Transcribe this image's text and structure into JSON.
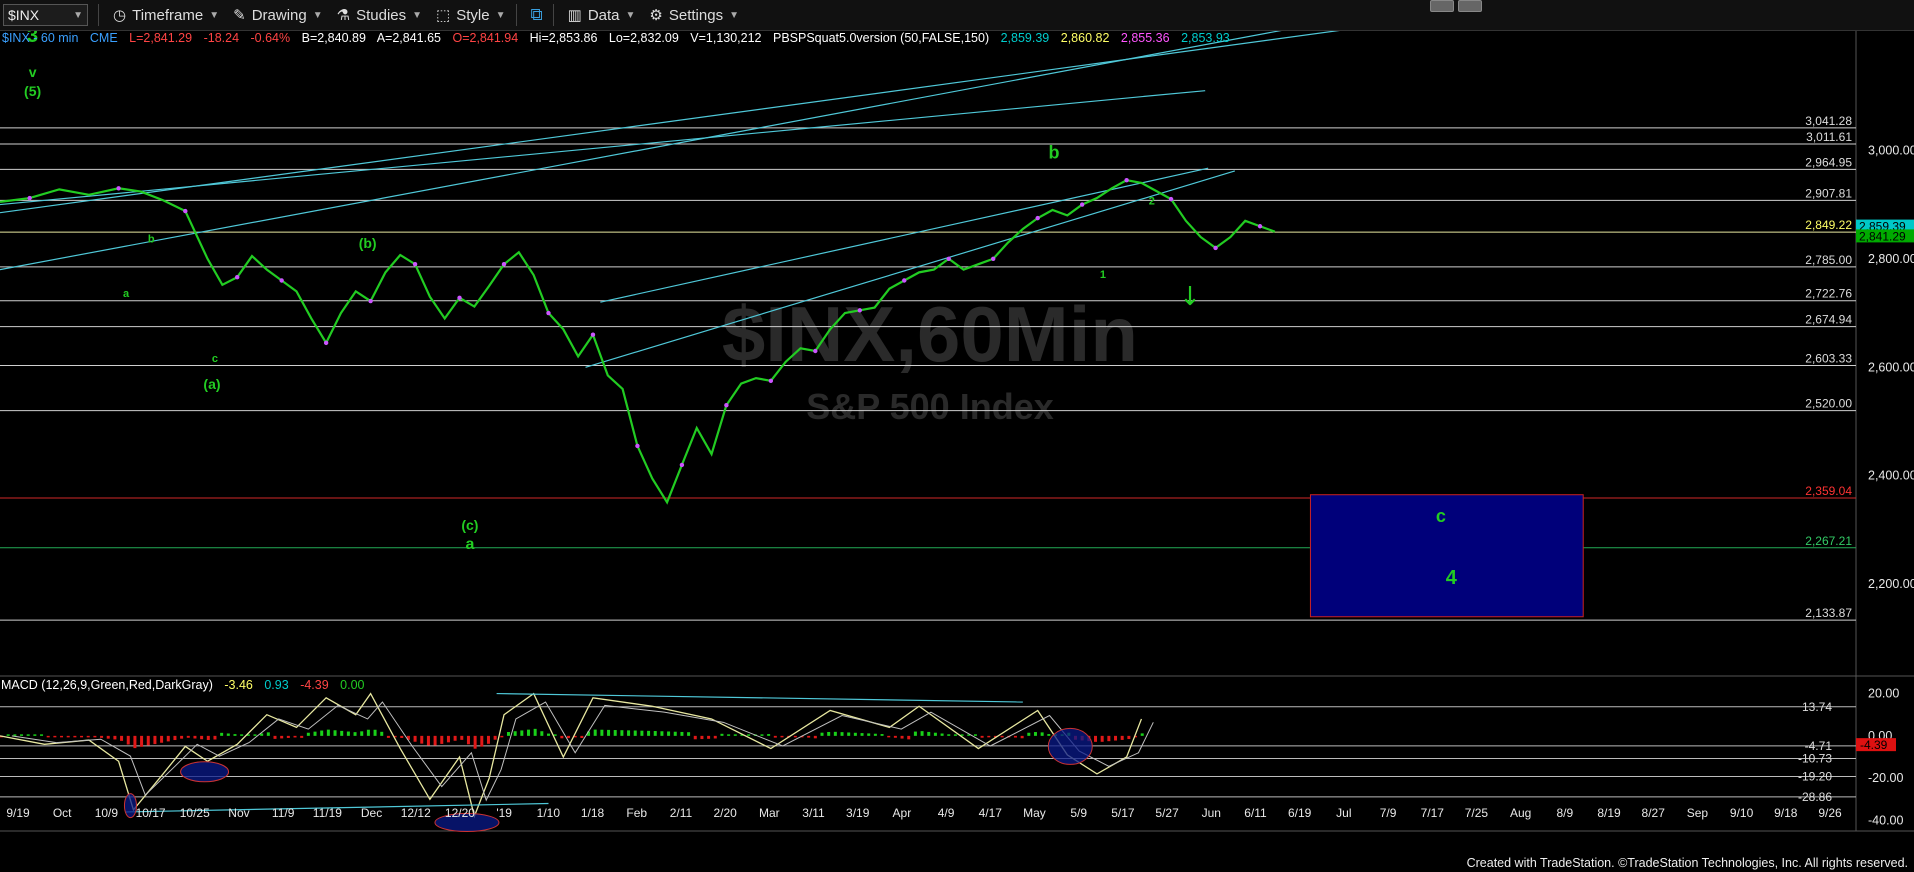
{
  "toolbar": {
    "symbol": "$INX",
    "timeframe": "Timeframe",
    "drawing": "Drawing",
    "studies": "Studies",
    "style": "Style",
    "data": "Data",
    "settings": "Settings"
  },
  "info": {
    "symbol": "$INX - 60 min",
    "exchange": "CME",
    "last": "L=2,841.29",
    "change": "-18.24",
    "pct": "-0.64%",
    "bid": "B=2,840.89",
    "ask": "A=2,841.65",
    "open": "O=2,841.94",
    "high": "Hi=2,853.86",
    "low": "Lo=2,832.09",
    "volume": "V=1,130,212",
    "study": "PBSPSquat5.0version (50,FALSE,150)",
    "v1": "2,859.39",
    "v2": "2,860.82",
    "v3": "2,855.36",
    "v4": "2,853.93"
  },
  "macd": {
    "label": "MACD (12,26,9,Green,Red,DarkGray)",
    "v1": "-3.46",
    "v2": "0.93",
    "v3": "-4.39",
    "v4": "0.00"
  },
  "footer": "Created with TradeStation. ©TradeStation Technologies, Inc. All rights reserved.",
  "colors": {
    "price": "#22cc22",
    "dots": "#cc55ff",
    "trend": "#4fc8d8",
    "level": "#cfcfcf",
    "red_level": "#d02828",
    "green_level": "#22aa55",
    "box": "#00007a",
    "macd_line": "#e8e8a0",
    "signal": "#c0c0c0",
    "hist_up": "#19d019",
    "hist_down": "#e01818"
  },
  "chart_data": {
    "type": "line",
    "title": "$INX,60Min",
    "subtitle": "S&P 500 Index",
    "watermark": "$INX,60Min",
    "watermark_sub": "S&P 500 Index",
    "ylim": [
      2040,
      3220
    ],
    "y_ticks": [
      {
        "v": 3000,
        "t": "3,000.00"
      },
      {
        "v": 2800,
        "t": "2,800.00"
      },
      {
        "v": 2600,
        "t": "2,600.00"
      },
      {
        "v": 2400,
        "t": "2,400.00"
      },
      {
        "v": 2200,
        "t": "2,200.00"
      }
    ],
    "levels": [
      {
        "v": 3041.28,
        "t": "3,041.28",
        "c": "level"
      },
      {
        "v": 3011.61,
        "t": "3,011.61",
        "c": "level"
      },
      {
        "v": 2964.95,
        "t": "2,964.95",
        "c": "level"
      },
      {
        "v": 2907.81,
        "t": "2,907.81",
        "c": "level"
      },
      {
        "v": 2849.22,
        "t": "2,849.22",
        "c": "yellow"
      },
      {
        "v": 2785.0,
        "t": "2,785.00",
        "c": "level"
      },
      {
        "v": 2722.76,
        "t": "2,722.76",
        "c": "level"
      },
      {
        "v": 2674.94,
        "t": "2,674.94",
        "c": "level"
      },
      {
        "v": 2603.33,
        "t": "2,603.33",
        "c": "level"
      },
      {
        "v": 2520.0,
        "t": "2,520.00",
        "c": "level"
      },
      {
        "v": 2359.04,
        "t": "2,359.04",
        "c": "red"
      },
      {
        "v": 2267.21,
        "t": "2,267.21",
        "c": "green"
      },
      {
        "v": 2133.87,
        "t": "2,133.87",
        "c": "level"
      }
    ],
    "last_tags": [
      {
        "v": 2859.39,
        "t": "2,859.39",
        "bg": "#00c8c8"
      },
      {
        "v": 2841.29,
        "t": "2,841.29",
        "bg": "#00aa00"
      }
    ],
    "x_labels": [
      "9/19",
      "Oct",
      "10/9",
      "10/17",
      "10/25",
      "Nov",
      "11/9",
      "11/19",
      "Dec",
      "12/12",
      "12/20",
      "'19",
      "1/10",
      "1/18",
      "Feb",
      "2/11",
      "2/20",
      "Mar",
      "3/11",
      "3/19",
      "Apr",
      "4/9",
      "4/17",
      "May",
      "5/9",
      "5/17",
      "5/27",
      "Jun",
      "6/11",
      "6/19",
      "Jul",
      "7/9",
      "7/17",
      "7/25",
      "Aug",
      "8/9",
      "8/19",
      "8/27",
      "Sep",
      "9/10",
      "9/18",
      "9/26"
    ],
    "price_path": [
      [
        0,
        2905
      ],
      [
        2,
        2912
      ],
      [
        4,
        2928
      ],
      [
        6,
        2918
      ],
      [
        8,
        2930
      ],
      [
        9.5,
        2924
      ],
      [
        11,
        2908
      ],
      [
        12.5,
        2888
      ],
      [
        14,
        2800
      ],
      [
        15,
        2752
      ],
      [
        16,
        2766
      ],
      [
        17,
        2805
      ],
      [
        18,
        2780
      ],
      [
        19,
        2760
      ],
      [
        20,
        2740
      ],
      [
        21,
        2690
      ],
      [
        22,
        2645
      ],
      [
        23,
        2700
      ],
      [
        24,
        2740
      ],
      [
        25,
        2722
      ],
      [
        26,
        2775
      ],
      [
        27,
        2807
      ],
      [
        28,
        2790
      ],
      [
        29,
        2730
      ],
      [
        30,
        2690
      ],
      [
        31,
        2728
      ],
      [
        32,
        2712
      ],
      [
        33,
        2750
      ],
      [
        34,
        2790
      ],
      [
        35,
        2812
      ],
      [
        36,
        2770
      ],
      [
        37,
        2700
      ],
      [
        38,
        2670
      ],
      [
        39,
        2620
      ],
      [
        40,
        2660
      ],
      [
        41,
        2585
      ],
      [
        42,
        2560
      ],
      [
        43,
        2455
      ],
      [
        44,
        2395
      ],
      [
        45,
        2351
      ],
      [
        46,
        2420
      ],
      [
        47,
        2488
      ],
      [
        48,
        2440
      ],
      [
        49,
        2530
      ],
      [
        50,
        2570
      ],
      [
        51,
        2580
      ],
      [
        52,
        2575
      ],
      [
        53,
        2610
      ],
      [
        54,
        2635
      ],
      [
        55,
        2630
      ],
      [
        56,
        2670
      ],
      [
        57,
        2700
      ],
      [
        58,
        2705
      ],
      [
        59,
        2710
      ],
      [
        60,
        2745
      ],
      [
        61,
        2760
      ],
      [
        62,
        2775
      ],
      [
        63,
        2780
      ],
      [
        64,
        2800
      ],
      [
        65,
        2780
      ],
      [
        66,
        2790
      ],
      [
        67,
        2800
      ],
      [
        68,
        2830
      ],
      [
        69,
        2855
      ],
      [
        70,
        2875
      ],
      [
        71,
        2890
      ],
      [
        72,
        2880
      ],
      [
        73,
        2900
      ],
      [
        74,
        2912
      ],
      [
        75,
        2930
      ],
      [
        76,
        2945
      ],
      [
        77,
        2940
      ],
      [
        78,
        2925
      ],
      [
        79,
        2910
      ],
      [
        80,
        2870
      ],
      [
        81,
        2840
      ],
      [
        82,
        2820
      ],
      [
        83,
        2840
      ],
      [
        84,
        2870
      ],
      [
        85,
        2860
      ],
      [
        86,
        2850
      ]
    ],
    "x_span": [
      0,
      125
    ],
    "plot_x_end_label": "5/17",
    "wave_labels": [
      {
        "t": "3",
        "x": 2.2,
        "y": 3200,
        "size": 20
      },
      {
        "t": "v",
        "x": 2.2,
        "y": 3135,
        "size": 14
      },
      {
        "t": "(5)",
        "x": 2.2,
        "y": 3100,
        "size": 14
      },
      {
        "t": "b",
        "x": 10.2,
        "y": 2830,
        "size": 11
      },
      {
        "t": "a",
        "x": 8.5,
        "y": 2730,
        "size": 11
      },
      {
        "t": "c",
        "x": 14.5,
        "y": 2610,
        "size": 11
      },
      {
        "t": "(a)",
        "x": 14.3,
        "y": 2560,
        "size": 14
      },
      {
        "t": "(b)",
        "x": 24.8,
        "y": 2820,
        "size": 14
      },
      {
        "t": "(c)",
        "x": 31.7,
        "y": 2300,
        "size": 14
      },
      {
        "t": "a",
        "x": 31.7,
        "y": 2265,
        "size": 16
      },
      {
        "t": "b",
        "x": 71.1,
        "y": 2985,
        "size": 18
      },
      {
        "t": "1",
        "x": 74.4,
        "y": 2765,
        "size": 11
      },
      {
        "t": "2",
        "x": 77.7,
        "y": 2900,
        "size": 11
      },
      {
        "t": "c",
        "x": 97.2,
        "y": 2315,
        "size": 18
      },
      {
        "t": "4",
        "x": 97.9,
        "y": 2200,
        "size": 20
      }
    ],
    "box": {
      "x0": 88.4,
      "x1": 106.8,
      "y0": 2365,
      "y1": 2140
    },
    "trendlines": [
      [
        [
          0,
          2780
        ],
        [
          88.2,
          3230
        ]
      ],
      [
        [
          0,
          2885
        ],
        [
          93.3,
          3232
        ]
      ],
      [
        [
          0,
          2900
        ],
        [
          81.3,
          3110
        ]
      ],
      [
        [
          40.5,
          2720
        ],
        [
          81.5,
          2967
        ]
      ],
      [
        [
          39.5,
          2600
        ],
        [
          83.3,
          2962
        ]
      ]
    ],
    "macd_ylim": [
      -45,
      25
    ],
    "macd_ticks": [
      {
        "v": 20,
        "t": "20.00"
      },
      {
        "v": 0,
        "t": "0.00"
      },
      {
        "v": -20,
        "t": "-20.00"
      },
      {
        "v": -40,
        "t": "-40.00"
      }
    ],
    "macd_levels": [
      {
        "v": 13.74,
        "t": "13.74"
      },
      {
        "v": -4.71,
        "t": "-4.71"
      },
      {
        "v": -10.73,
        "t": "-10.73"
      },
      {
        "v": -19.2,
        "t": "-19.20"
      },
      {
        "v": -28.86,
        "t": "-28.86"
      }
    ],
    "macd_tag": {
      "v": -4.39,
      "t": "-4.39"
    },
    "macd_path": [
      [
        0,
        0
      ],
      [
        3,
        -4
      ],
      [
        6,
        -2
      ],
      [
        8,
        -12
      ],
      [
        9,
        -35
      ],
      [
        11,
        -18
      ],
      [
        12.5,
        -5
      ],
      [
        14,
        -12
      ],
      [
        16,
        -4
      ],
      [
        18,
        10
      ],
      [
        20,
        4
      ],
      [
        22,
        18
      ],
      [
        24,
        10
      ],
      [
        25,
        20
      ],
      [
        27,
        -6
      ],
      [
        29,
        -30
      ],
      [
        31,
        -10
      ],
      [
        32,
        -38
      ],
      [
        33,
        -20
      ],
      [
        34,
        10
      ],
      [
        36,
        20
      ],
      [
        38,
        -10
      ],
      [
        40,
        18
      ],
      [
        44,
        14
      ],
      [
        48,
        8
      ],
      [
        52,
        -6
      ],
      [
        56,
        12
      ],
      [
        60,
        4
      ],
      [
        62,
        14
      ],
      [
        66,
        -6
      ],
      [
        70,
        12
      ],
      [
        72,
        -9
      ],
      [
        74,
        -18
      ],
      [
        76,
        -10
      ],
      [
        77,
        8
      ]
    ]
  }
}
